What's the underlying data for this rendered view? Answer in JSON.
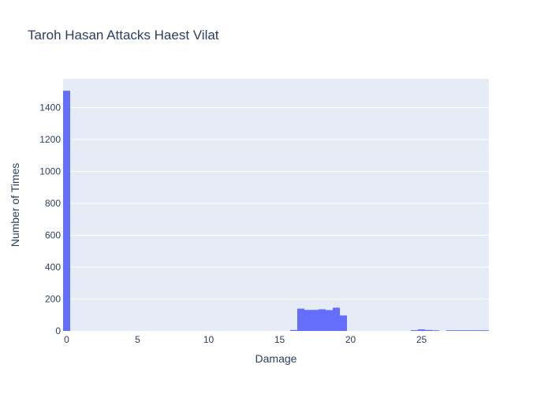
{
  "chart_data": {
    "type": "bar",
    "title": "Taroh Hasan Attacks Haest Vilat",
    "xlabel": "Damage",
    "ylabel": "Number of Times",
    "xlim": [
      -0.25,
      29.75
    ],
    "ylim": [
      0,
      1580
    ],
    "bin_width": 0.5,
    "x_ticks": [
      0,
      5,
      10,
      15,
      20,
      25
    ],
    "y_ticks": [
      0,
      200,
      400,
      600,
      800,
      1000,
      1200,
      1400
    ],
    "bins": [
      {
        "x": 0,
        "count": 1505
      },
      {
        "x": 16,
        "count": 6
      },
      {
        "x": 16.5,
        "count": 140
      },
      {
        "x": 17,
        "count": 132
      },
      {
        "x": 17.5,
        "count": 132
      },
      {
        "x": 18,
        "count": 136
      },
      {
        "x": 18.5,
        "count": 131
      },
      {
        "x": 19,
        "count": 146
      },
      {
        "x": 19.5,
        "count": 97
      },
      {
        "x": 24.5,
        "count": 5
      },
      {
        "x": 25,
        "count": 10
      },
      {
        "x": 25.5,
        "count": 6
      },
      {
        "x": 26,
        "count": 4
      },
      {
        "x": 27,
        "count": 4
      },
      {
        "x": 27.5,
        "count": 4
      },
      {
        "x": 28,
        "count": 4
      },
      {
        "x": 28.5,
        "count": 4
      },
      {
        "x": 29,
        "count": 4
      },
      {
        "x": 29.5,
        "count": 4
      }
    ],
    "colors": {
      "bar": "#636efa",
      "plot_bg": "#e5ecf6",
      "grid": "#ffffff",
      "text": "#2a3f5f"
    }
  }
}
